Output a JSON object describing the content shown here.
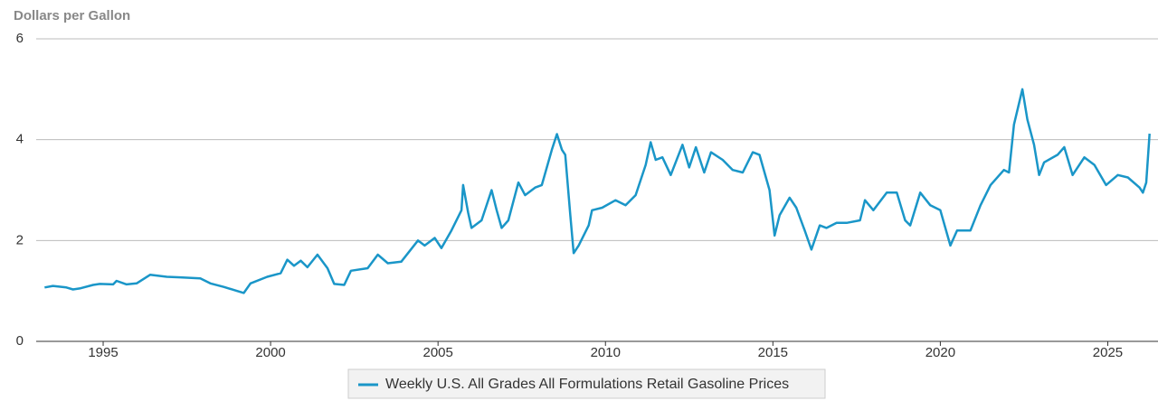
{
  "chart_data": {
    "type": "line",
    "y_label": "Dollars per Gallon",
    "xlim": [
      1993,
      2026.5
    ],
    "xticks": [
      1995,
      2000,
      2005,
      2010,
      2015,
      2020,
      2025
    ],
    "ylim": [
      0,
      6
    ],
    "yticks": [
      0,
      2,
      4,
      6
    ],
    "grid": true,
    "legend": "bottom",
    "x": [
      1993.25,
      1993.5,
      1993.9,
      1994.1,
      1994.3,
      1994.7,
      1994.9,
      1995.3,
      1995.4,
      1995.7,
      1996.0,
      1996.4,
      1996.9,
      1997.3,
      1997.9,
      1998.2,
      1998.6,
      1999.0,
      1999.2,
      1999.4,
      1999.9,
      2000.3,
      2000.5,
      2000.7,
      2000.9,
      2001.1,
      2001.4,
      2001.7,
      2001.9,
      2002.2,
      2002.4,
      2002.9,
      2003.2,
      2003.5,
      2003.9,
      2004.4,
      2004.6,
      2004.9,
      2005.1,
      2005.4,
      2005.7,
      2005.75,
      2005.9,
      2006.0,
      2006.3,
      2006.6,
      2006.75,
      2006.9,
      2007.1,
      2007.4,
      2007.6,
      2007.9,
      2008.1,
      2008.4,
      2008.55,
      2008.7,
      2008.8,
      2008.95,
      2009.05,
      2009.2,
      2009.5,
      2009.6,
      2009.9,
      2010.3,
      2010.6,
      2010.9,
      2011.2,
      2011.35,
      2011.5,
      2011.7,
      2011.95,
      2012.3,
      2012.5,
      2012.7,
      2012.95,
      2013.15,
      2013.5,
      2013.8,
      2014.1,
      2014.4,
      2014.6,
      2014.9,
      2015.05,
      2015.2,
      2015.5,
      2015.7,
      2015.95,
      2016.15,
      2016.4,
      2016.6,
      2016.9,
      2017.2,
      2017.6,
      2017.75,
      2018.0,
      2018.4,
      2018.7,
      2018.95,
      2019.1,
      2019.4,
      2019.7,
      2020.0,
      2020.3,
      2020.5,
      2020.9,
      2021.2,
      2021.5,
      2021.9,
      2022.05,
      2022.2,
      2022.45,
      2022.6,
      2022.8,
      2022.95,
      2023.1,
      2023.5,
      2023.7,
      2023.95,
      2024.3,
      2024.6,
      2024.95,
      2025.3,
      2025.6,
      2025.95,
      2026.05,
      2026.15,
      2026.25
    ],
    "series": [
      {
        "name": "Weekly U.S. All Grades All Formulations Retail Gasoline Prices",
        "color": "#1a96c8",
        "values": [
          1.07,
          1.1,
          1.07,
          1.03,
          1.05,
          1.12,
          1.14,
          1.13,
          1.2,
          1.13,
          1.15,
          1.32,
          1.28,
          1.27,
          1.25,
          1.15,
          1.08,
          1.0,
          0.96,
          1.15,
          1.28,
          1.35,
          1.62,
          1.5,
          1.6,
          1.47,
          1.72,
          1.45,
          1.14,
          1.12,
          1.4,
          1.45,
          1.72,
          1.55,
          1.58,
          2.0,
          1.9,
          2.05,
          1.85,
          2.2,
          2.6,
          3.1,
          2.55,
          2.25,
          2.4,
          3.0,
          2.6,
          2.25,
          2.4,
          3.15,
          2.9,
          3.05,
          3.1,
          3.8,
          4.11,
          3.8,
          3.7,
          2.5,
          1.75,
          1.9,
          2.3,
          2.6,
          2.65,
          2.8,
          2.7,
          2.9,
          3.5,
          3.95,
          3.6,
          3.65,
          3.3,
          3.9,
          3.45,
          3.85,
          3.35,
          3.75,
          3.6,
          3.4,
          3.35,
          3.75,
          3.7,
          3.0,
          2.1,
          2.5,
          2.85,
          2.65,
          2.2,
          1.82,
          2.3,
          2.25,
          2.35,
          2.35,
          2.4,
          2.8,
          2.6,
          2.95,
          2.95,
          2.4,
          2.3,
          2.95,
          2.7,
          2.6,
          1.9,
          2.2,
          2.2,
          2.7,
          3.1,
          3.4,
          3.35,
          4.3,
          5.0,
          4.4,
          3.9,
          3.3,
          3.55,
          3.7,
          3.85,
          3.3,
          3.65,
          3.5,
          3.1,
          3.3,
          3.25,
          3.05,
          2.95,
          3.15,
          4.12
        ]
      }
    ]
  }
}
